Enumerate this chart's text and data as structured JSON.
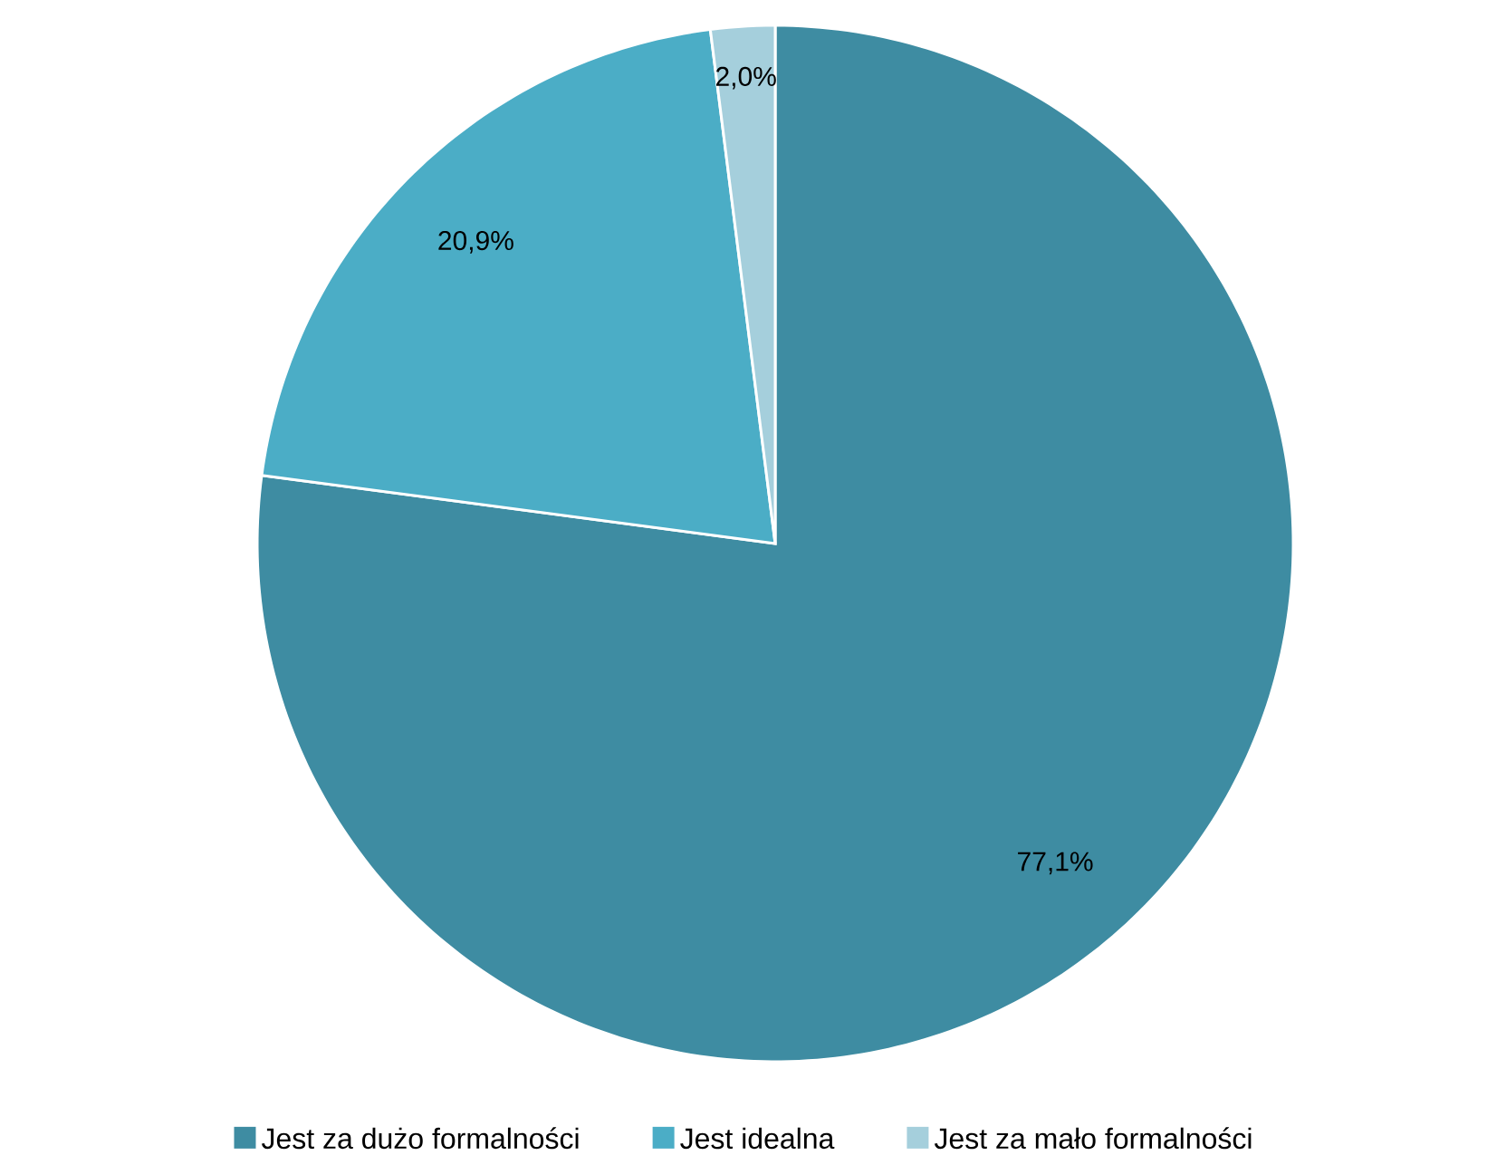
{
  "chart_data": {
    "type": "pie",
    "categories": [
      "Jest za dużo formalności",
      "Jest idealna",
      "Jest za mało formalności"
    ],
    "values": [
      77.1,
      20.9,
      2.0
    ],
    "value_labels": [
      "77,1%",
      "20,9%",
      "2,0%"
    ],
    "colors": [
      "#3e8ca2",
      "#4badc6",
      "#a5cfdc"
    ],
    "legend": "bottom"
  }
}
